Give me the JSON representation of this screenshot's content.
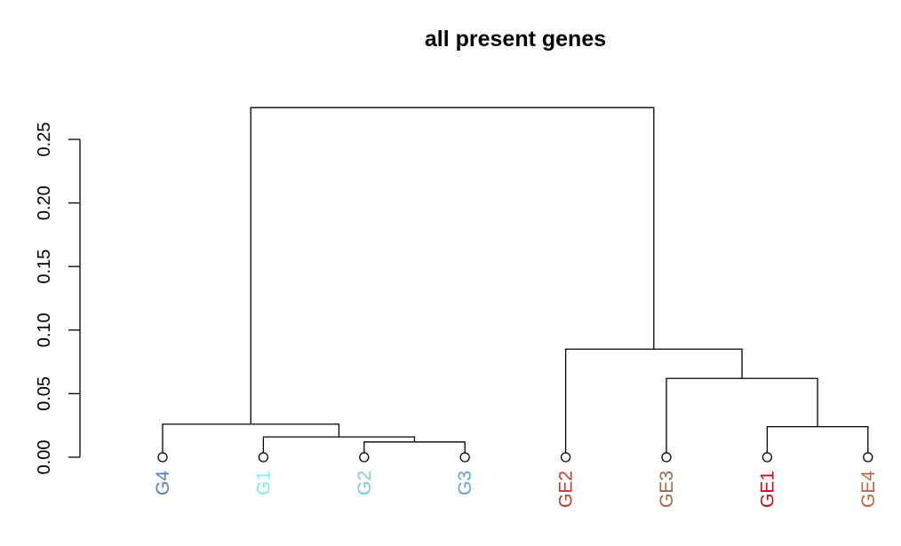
{
  "chart_data": {
    "type": "dendrogram",
    "title": "all present genes",
    "ylim": [
      0,
      0.28
    ],
    "y_ticks": [
      "0.00",
      "0.05",
      "0.10",
      "0.15",
      "0.20",
      "0.25"
    ],
    "y_tick_values": [
      0,
      0.05,
      0.1,
      0.15,
      0.2,
      0.25
    ],
    "leaves": [
      {
        "label": "G4",
        "color": "#5b7fb2"
      },
      {
        "label": "G1",
        "color": "#7ff0ee"
      },
      {
        "label": "G2",
        "color": "#7fc8d9"
      },
      {
        "label": "G3",
        "color": "#6aa3c9"
      },
      {
        "label": "GE2",
        "color": "#c93a2a"
      },
      {
        "label": "GE3",
        "color": "#9e6846"
      },
      {
        "label": "GE1",
        "color": "#d10c14"
      },
      {
        "label": "GE4",
        "color": "#b8663e"
      }
    ],
    "merges": [
      {
        "left": 2,
        "right": 3,
        "height": 0.012
      },
      {
        "left": 1,
        "right": "m0",
        "height": 0.016
      },
      {
        "left": 0,
        "right": "m1",
        "height": 0.026
      },
      {
        "left": 6,
        "right": 7,
        "height": 0.024
      },
      {
        "left": 5,
        "right": "m3",
        "height": 0.062
      },
      {
        "left": 4,
        "right": "m4",
        "height": 0.085
      },
      {
        "left": "m2",
        "right": "m5",
        "height": 0.275
      }
    ]
  }
}
